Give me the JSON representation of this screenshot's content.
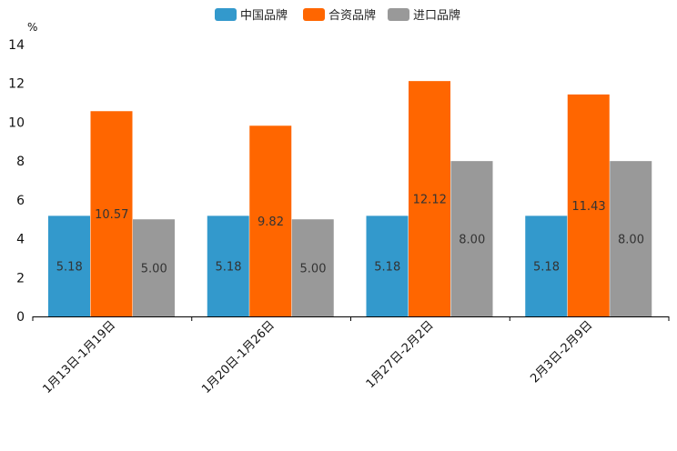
{
  "chart_data": {
    "type": "bar",
    "title": "",
    "xlabel": "",
    "ylabel": "%",
    "ylim": [
      0,
      14
    ],
    "yticks": [
      0,
      2,
      4,
      6,
      8,
      10,
      12,
      14
    ],
    "grid": false,
    "legend_position": "top-center",
    "categories": [
      "1月13日-1月19日",
      "1月20日-1月26日",
      "1月27日-2月2日",
      "2月3日-2月9日"
    ],
    "series": [
      {
        "name": "中国品牌",
        "color": "#3399cc",
        "values": [
          5.18,
          5.18,
          5.18,
          5.18
        ],
        "labels": [
          "5.18",
          "5.18",
          "5.18",
          "5.18"
        ]
      },
      {
        "name": "合资品牌",
        "color": "#ff6600",
        "values": [
          10.57,
          9.82,
          12.12,
          11.43
        ],
        "labels": [
          "10.57",
          "9.82",
          "12.12",
          "11.43"
        ]
      },
      {
        "name": "进口品牌",
        "color": "#999999",
        "values": [
          5.0,
          5.0,
          8.0,
          8.0
        ],
        "labels": [
          "5.00",
          "5.00",
          "8.00",
          "8.00"
        ]
      }
    ]
  }
}
